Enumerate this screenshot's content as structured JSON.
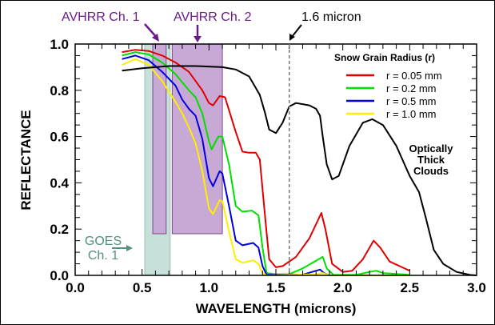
{
  "chart_data": {
    "type": "line",
    "xlabel": "WAVELENGTH (microns)",
    "ylabel": "REFLECTANCE",
    "xlim": [
      0.0,
      3.0
    ],
    "ylim": [
      0.0,
      1.0
    ],
    "x_ticks": [
      "0.0",
      "0.5",
      "1.0",
      "1.5",
      "2.0",
      "2.5",
      "3.0"
    ],
    "y_ticks": [
      "0.0",
      "0.2",
      "0.4",
      "0.6",
      "0.8",
      "1.0"
    ],
    "grid": false,
    "legend": {
      "title": "Snow Grain Radius (r)",
      "placement": "top-right"
    },
    "series": [
      {
        "name": "r = 0.05 mm",
        "color": "#e00000",
        "points": [
          [
            0.35,
            0.965
          ],
          [
            0.45,
            0.975
          ],
          [
            0.55,
            0.97
          ],
          [
            0.65,
            0.95
          ],
          [
            0.75,
            0.92
          ],
          [
            0.85,
            0.88
          ],
          [
            0.95,
            0.8
          ],
          [
            1.0,
            0.745
          ],
          [
            1.03,
            0.735
          ],
          [
            1.08,
            0.775
          ],
          [
            1.12,
            0.77
          ],
          [
            1.2,
            0.62
          ],
          [
            1.25,
            0.535
          ],
          [
            1.3,
            0.53
          ],
          [
            1.35,
            0.53
          ],
          [
            1.38,
            0.5
          ],
          [
            1.42,
            0.25
          ],
          [
            1.45,
            0.07
          ],
          [
            1.5,
            0.035
          ],
          [
            1.55,
            0.04
          ],
          [
            1.65,
            0.08
          ],
          [
            1.75,
            0.16
          ],
          [
            1.84,
            0.27
          ],
          [
            1.87,
            0.2
          ],
          [
            1.92,
            0.05
          ],
          [
            2.0,
            0.015
          ],
          [
            2.07,
            0.02
          ],
          [
            2.15,
            0.07
          ],
          [
            2.23,
            0.15
          ],
          [
            2.28,
            0.12
          ],
          [
            2.35,
            0.06
          ],
          [
            2.5,
            0.02
          ]
        ]
      },
      {
        "name": "r = 0.2 mm",
        "color": "#00e000",
        "points": [
          [
            0.35,
            0.95
          ],
          [
            0.45,
            0.965
          ],
          [
            0.55,
            0.955
          ],
          [
            0.65,
            0.92
          ],
          [
            0.75,
            0.87
          ],
          [
            0.85,
            0.8
          ],
          [
            0.9,
            0.77
          ],
          [
            0.95,
            0.7
          ],
          [
            1.0,
            0.58
          ],
          [
            1.02,
            0.545
          ],
          [
            1.07,
            0.6
          ],
          [
            1.1,
            0.6
          ],
          [
            1.15,
            0.48
          ],
          [
            1.2,
            0.3
          ],
          [
            1.25,
            0.275
          ],
          [
            1.32,
            0.28
          ],
          [
            1.37,
            0.26
          ],
          [
            1.4,
            0.12
          ],
          [
            1.43,
            0.01
          ],
          [
            1.5,
            0.005
          ],
          [
            1.6,
            0.005
          ],
          [
            1.7,
            0.03
          ],
          [
            1.85,
            0.08
          ],
          [
            1.88,
            0.03
          ],
          [
            1.93,
            0.002
          ],
          [
            2.1,
            0.002
          ],
          [
            2.2,
            0.015
          ],
          [
            2.25,
            0.02
          ],
          [
            2.3,
            0.01
          ],
          [
            2.5,
            0.002
          ]
        ]
      },
      {
        "name": "r = 0.5 mm",
        "color": "#0000e0",
        "points": [
          [
            0.35,
            0.935
          ],
          [
            0.45,
            0.95
          ],
          [
            0.55,
            0.93
          ],
          [
            0.65,
            0.88
          ],
          [
            0.75,
            0.82
          ],
          [
            0.8,
            0.76
          ],
          [
            0.85,
            0.72
          ],
          [
            0.9,
            0.69
          ],
          [
            0.95,
            0.59
          ],
          [
            1.0,
            0.42
          ],
          [
            1.03,
            0.385
          ],
          [
            1.08,
            0.45
          ],
          [
            1.1,
            0.44
          ],
          [
            1.15,
            0.3
          ],
          [
            1.2,
            0.15
          ],
          [
            1.25,
            0.13
          ],
          [
            1.33,
            0.14
          ],
          [
            1.37,
            0.12
          ],
          [
            1.4,
            0.04
          ],
          [
            1.43,
            0.003
          ],
          [
            1.7,
            0.003
          ],
          [
            1.83,
            0.025
          ],
          [
            1.86,
            0.01
          ],
          [
            1.9,
            0.0
          ],
          [
            2.5,
            0.0
          ]
        ]
      },
      {
        "name": "r = 1.0 mm",
        "color": "#ffee00",
        "points": [
          [
            0.35,
            0.91
          ],
          [
            0.45,
            0.935
          ],
          [
            0.55,
            0.91
          ],
          [
            0.65,
            0.84
          ],
          [
            0.75,
            0.75
          ],
          [
            0.8,
            0.7
          ],
          [
            0.85,
            0.64
          ],
          [
            0.9,
            0.57
          ],
          [
            0.95,
            0.45
          ],
          [
            1.0,
            0.29
          ],
          [
            1.03,
            0.265
          ],
          [
            1.08,
            0.325
          ],
          [
            1.1,
            0.32
          ],
          [
            1.15,
            0.19
          ],
          [
            1.2,
            0.07
          ],
          [
            1.25,
            0.055
          ],
          [
            1.33,
            0.065
          ],
          [
            1.37,
            0.05
          ],
          [
            1.4,
            0.01
          ],
          [
            1.43,
            0.0
          ],
          [
            1.8,
            0.005
          ],
          [
            1.85,
            0.01
          ],
          [
            1.9,
            0.0
          ],
          [
            2.5,
            0.0
          ]
        ]
      },
      {
        "color": "#000000",
        "points": [
          [
            0.35,
            0.885
          ],
          [
            0.5,
            0.895
          ],
          [
            0.7,
            0.905
          ],
          [
            0.9,
            0.905
          ],
          [
            1.1,
            0.9
          ],
          [
            1.2,
            0.89
          ],
          [
            1.3,
            0.86
          ],
          [
            1.34,
            0.82
          ],
          [
            1.38,
            0.78
          ],
          [
            1.42,
            0.7
          ],
          [
            1.45,
            0.63
          ],
          [
            1.5,
            0.615
          ],
          [
            1.55,
            0.66
          ],
          [
            1.6,
            0.73
          ],
          [
            1.65,
            0.745
          ],
          [
            1.75,
            0.735
          ],
          [
            1.8,
            0.72
          ],
          [
            1.83,
            0.69
          ],
          [
            1.85,
            0.6
          ],
          [
            1.88,
            0.48
          ],
          [
            1.92,
            0.415
          ],
          [
            1.97,
            0.43
          ],
          [
            2.05,
            0.56
          ],
          [
            2.15,
            0.66
          ],
          [
            2.22,
            0.675
          ],
          [
            2.3,
            0.65
          ],
          [
            2.4,
            0.56
          ],
          [
            2.5,
            0.43
          ],
          [
            2.57,
            0.36
          ],
          [
            2.62,
            0.25
          ],
          [
            2.68,
            0.11
          ],
          [
            2.75,
            0.05
          ],
          [
            2.85,
            0.015
          ],
          [
            2.95,
            0.002
          ],
          [
            3.0,
            0.0
          ]
        ]
      }
    ],
    "bands": [
      {
        "label": "GOES Ch. 1",
        "x": [
          0.52,
          0.71
        ],
        "y": [
          0.0,
          1.0
        ],
        "color": "#c8e0da"
      },
      {
        "label": "AVHRR Ch. 1",
        "x": [
          0.58,
          0.68
        ],
        "y": [
          0.18,
          1.0
        ],
        "color": "#c8a8d4"
      },
      {
        "label": "AVHRR Ch. 2",
        "x": [
          0.725,
          1.1
        ],
        "y": [
          0.18,
          1.0
        ],
        "color": "#c8a8d4"
      }
    ],
    "annotations": {
      "avhrr1": "AVHRR Ch. 1",
      "avhrr2": "AVHRR Ch. 2",
      "micron": "1.6 micron",
      "micron_x": 1.6,
      "goes_line1": "GOES",
      "goes_line2": "Ch. 1",
      "clouds_line1": "Optically",
      "clouds_line2": "Thick",
      "clouds_line3": "Clouds",
      "avhrr_color": "#6a1b8a",
      "goes_color": "#4f9080"
    }
  }
}
